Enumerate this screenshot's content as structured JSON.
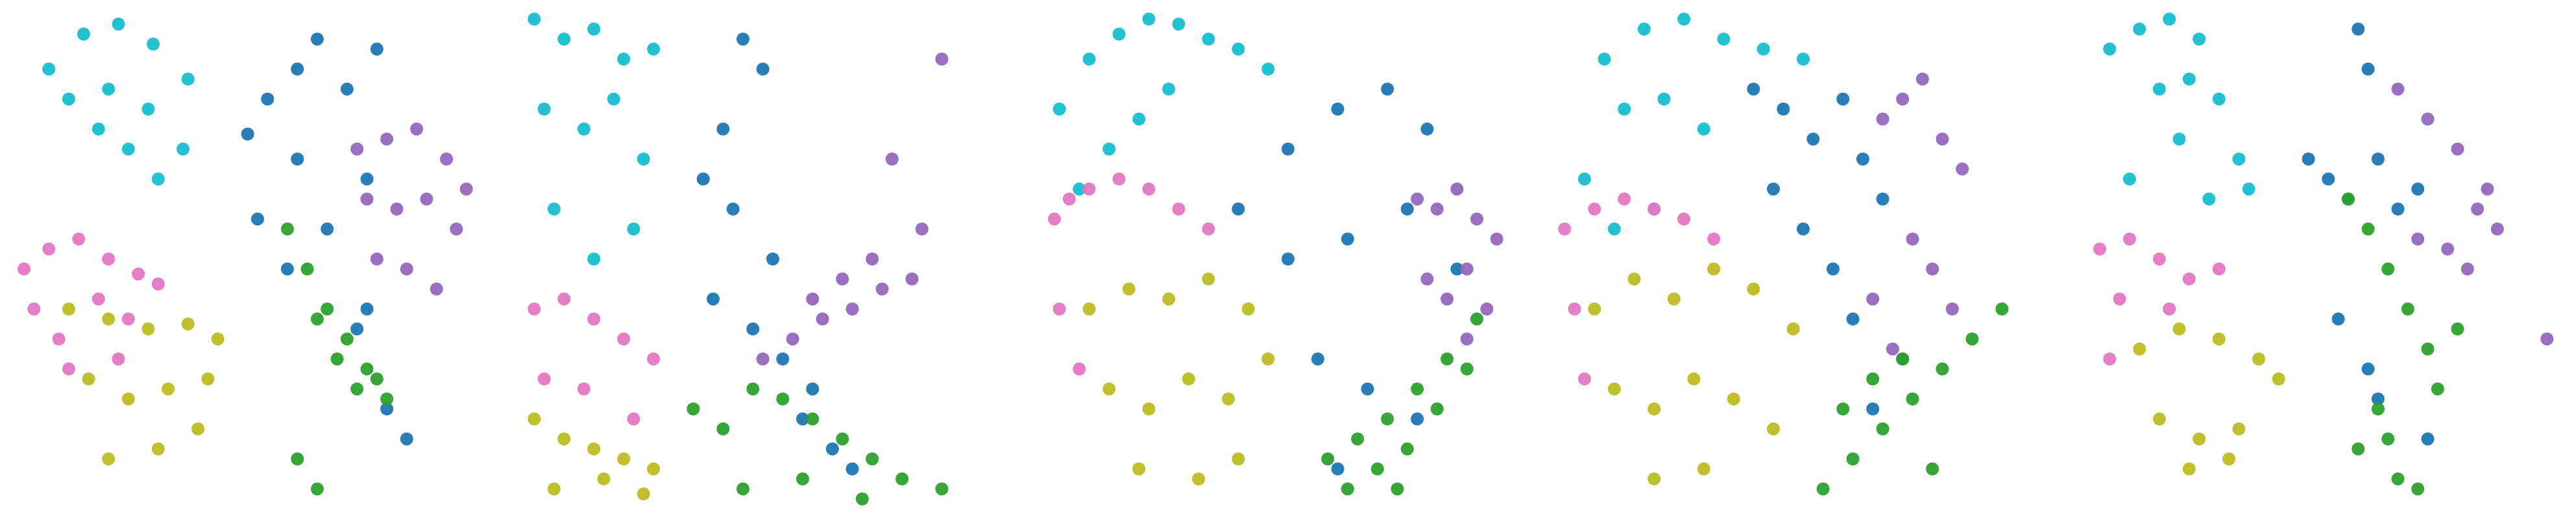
{
  "chart_data": [
    {
      "type": "scatter",
      "xlim": [
        0,
        100
      ],
      "ylim": [
        0,
        100
      ],
      "series": [
        {
          "color": "#17becf",
          "x": [
            8,
            15,
            22,
            29,
            36,
            12,
            20,
            28,
            35,
            24,
            30,
            18
          ],
          "y": [
            88,
            95,
            97,
            93,
            86,
            82,
            84,
            80,
            72,
            72,
            66,
            76
          ]
        },
        {
          "color": "#e377c2",
          "x": [
            3,
            8,
            14,
            20,
            26,
            5,
            10,
            18,
            24,
            30,
            12,
            22
          ],
          "y": [
            48,
            52,
            54,
            50,
            47,
            40,
            34,
            42,
            38,
            45,
            28,
            30
          ]
        },
        {
          "color": "#bcbd22",
          "x": [
            12,
            20,
            28,
            36,
            42,
            16,
            24,
            32,
            40,
            20,
            30,
            38
          ],
          "y": [
            40,
            38,
            36,
            37,
            34,
            26,
            22,
            24,
            26,
            10,
            12,
            16
          ]
        },
        {
          "color": "#1f77b4",
          "x": [
            48,
            52,
            58,
            62,
            68,
            72,
            50,
            56,
            64,
            70,
            76,
            80,
            58,
            74,
            72
          ],
          "y": [
            75,
            82,
            70,
            94,
            84,
            66,
            58,
            48,
            56,
            36,
            20,
            14,
            88,
            92,
            40
          ]
        },
        {
          "color": "#9467bd",
          "x": [
            70,
            76,
            82,
            88,
            92,
            72,
            78,
            84,
            90,
            74,
            80,
            86
          ],
          "y": [
            72,
            74,
            76,
            70,
            64,
            62,
            60,
            62,
            56,
            50,
            48,
            44
          ]
        },
        {
          "color": "#2ca02c",
          "x": [
            56,
            60,
            64,
            68,
            72,
            62,
            66,
            70,
            74,
            58,
            62,
            76
          ],
          "y": [
            56,
            48,
            40,
            34,
            28,
            38,
            30,
            24,
            26,
            10,
            4,
            22
          ]
        }
      ]
    },
    {
      "type": "scatter",
      "xlim": [
        0,
        100
      ],
      "ylim": [
        0,
        100
      ],
      "series": [
        {
          "color": "#17becf",
          "x": [
            2,
            8,
            14,
            20,
            26,
            4,
            12,
            18,
            24,
            6,
            14,
            22
          ],
          "y": [
            98,
            94,
            96,
            90,
            92,
            80,
            76,
            82,
            70,
            60,
            50,
            56
          ]
        },
        {
          "color": "#e377c2",
          "x": [
            2,
            8,
            14,
            20,
            26,
            4,
            12,
            22
          ],
          "y": [
            40,
            42,
            38,
            34,
            30,
            26,
            24,
            18
          ]
        },
        {
          "color": "#bcbd22",
          "x": [
            2,
            8,
            14,
            20,
            26,
            6,
            16,
            24
          ],
          "y": [
            18,
            14,
            12,
            10,
            8,
            4,
            6,
            3
          ]
        },
        {
          "color": "#1f77b4",
          "x": [
            44,
            48,
            40,
            36,
            42,
            50,
            38,
            46,
            52,
            58,
            56,
            62,
            66
          ],
          "y": [
            94,
            88,
            76,
            66,
            60,
            50,
            42,
            36,
            30,
            24,
            18,
            12,
            8
          ]
        },
        {
          "color": "#9467bd",
          "x": [
            48,
            54,
            60,
            66,
            72,
            78,
            58,
            64,
            70,
            80,
            84,
            74
          ],
          "y": [
            30,
            34,
            38,
            40,
            44,
            46,
            42,
            46,
            50,
            56,
            90,
            70
          ]
        },
        {
          "color": "#2ca02c",
          "x": [
            34,
            40,
            46,
            52,
            58,
            64,
            70,
            76,
            44,
            56,
            68,
            84
          ],
          "y": [
            20,
            16,
            24,
            22,
            18,
            14,
            10,
            6,
            4,
            6,
            2,
            4
          ]
        }
      ]
    },
    {
      "type": "scatter",
      "xlim": [
        0,
        100
      ],
      "ylim": [
        0,
        100
      ],
      "series": [
        {
          "color": "#17becf",
          "x": [
            4,
            10,
            16,
            22,
            28,
            34,
            40,
            46,
            8,
            14,
            20,
            26
          ],
          "y": [
            80,
            90,
            95,
            98,
            97,
            94,
            92,
            88,
            64,
            72,
            78,
            84
          ]
        },
        {
          "color": "#e377c2",
          "x": [
            3,
            6,
            10,
            16,
            22,
            28,
            34,
            4,
            8
          ],
          "y": [
            58,
            62,
            64,
            66,
            64,
            60,
            56,
            40,
            28
          ]
        },
        {
          "color": "#bcbd22",
          "x": [
            10,
            18,
            26,
            34,
            42,
            14,
            22,
            30,
            38,
            46,
            20,
            32,
            40
          ],
          "y": [
            40,
            44,
            42,
            46,
            40,
            24,
            20,
            26,
            22,
            30,
            8,
            6,
            10
          ]
        },
        {
          "color": "#1f77b4",
          "x": [
            40,
            50,
            60,
            70,
            78,
            50,
            62,
            74,
            84,
            56,
            66,
            76,
            60
          ],
          "y": [
            60,
            72,
            80,
            84,
            76,
            50,
            54,
            60,
            48,
            30,
            24,
            18,
            8
          ]
        },
        {
          "color": "#9467bd",
          "x": [
            76,
            80,
            84,
            88,
            92,
            78,
            82,
            86,
            90,
            86
          ],
          "y": [
            62,
            60,
            64,
            58,
            54,
            46,
            42,
            48,
            40,
            34
          ]
        },
        {
          "color": "#2ca02c",
          "x": [
            58,
            64,
            70,
            76,
            82,
            88,
            68,
            74,
            80,
            86,
            62,
            72
          ],
          "y": [
            10,
            14,
            18,
            24,
            30,
            38,
            8,
            12,
            20,
            28,
            4,
            4
          ]
        }
      ]
    },
    {
      "type": "scatter",
      "xlim": [
        0,
        100
      ],
      "ylim": [
        0,
        100
      ],
      "series": [
        {
          "color": "#17becf",
          "x": [
            10,
            18,
            26,
            34,
            42,
            50,
            14,
            22,
            30,
            6,
            12,
            20
          ],
          "y": [
            90,
            96,
            98,
            94,
            92,
            90,
            80,
            82,
            76,
            66,
            56,
            60
          ]
        },
        {
          "color": "#e377c2",
          "x": [
            2,
            8,
            14,
            20,
            26,
            32,
            4,
            6
          ],
          "y": [
            56,
            60,
            62,
            60,
            58,
            54,
            40,
            26
          ]
        },
        {
          "color": "#bcbd22",
          "x": [
            8,
            16,
            24,
            32,
            40,
            48,
            12,
            20,
            28,
            36,
            44,
            20,
            30
          ],
          "y": [
            40,
            46,
            42,
            48,
            44,
            36,
            24,
            20,
            26,
            22,
            16,
            6,
            8
          ]
        },
        {
          "color": "#1f77b4",
          "x": [
            40,
            46,
            52,
            58,
            62,
            66,
            44,
            50,
            56,
            60,
            70,
            64
          ],
          "y": [
            84,
            80,
            74,
            82,
            70,
            62,
            64,
            56,
            48,
            38,
            30,
            20
          ]
        },
        {
          "color": "#9467bd",
          "x": [
            66,
            70,
            74,
            78,
            82,
            72,
            76,
            80,
            64,
            68
          ],
          "y": [
            78,
            82,
            86,
            74,
            68,
            54,
            48,
            40,
            42,
            32
          ]
        },
        {
          "color": "#2ca02c",
          "x": [
            54,
            60,
            66,
            72,
            78,
            84,
            58,
            64,
            70,
            76,
            90
          ],
          "y": [
            4,
            10,
            16,
            22,
            28,
            34,
            20,
            26,
            30,
            8,
            40
          ]
        }
      ]
    },
    {
      "type": "scatter",
      "xlim": [
        0,
        100
      ],
      "ylim": [
        0,
        100
      ],
      "series": [
        {
          "color": "#17becf",
          "x": [
            8,
            14,
            20,
            26,
            18,
            24,
            30,
            22,
            34,
            12,
            28,
            36
          ],
          "y": [
            92,
            96,
            98,
            94,
            84,
            86,
            82,
            74,
            70,
            66,
            62,
            64
          ]
        },
        {
          "color": "#e377c2",
          "x": [
            6,
            12,
            18,
            24,
            30,
            10,
            20,
            8
          ],
          "y": [
            52,
            54,
            50,
            46,
            48,
            42,
            40,
            30
          ]
        },
        {
          "color": "#bcbd22",
          "x": [
            14,
            22,
            30,
            38,
            42,
            18,
            26,
            34,
            24,
            32
          ],
          "y": [
            32,
            36,
            34,
            30,
            26,
            18,
            14,
            16,
            8,
            10
          ]
        },
        {
          "color": "#1f77b4",
          "x": [
            58,
            60,
            48,
            52,
            56,
            62,
            66,
            70,
            54,
            60,
            72,
            62
          ],
          "y": [
            96,
            88,
            70,
            66,
            62,
            70,
            60,
            64,
            38,
            28,
            14,
            22
          ]
        },
        {
          "color": "#9467bd",
          "x": [
            66,
            72,
            78,
            82,
            86,
            70,
            76,
            80,
            96,
            84
          ],
          "y": [
            84,
            78,
            72,
            60,
            56,
            54,
            52,
            48,
            34,
            64
          ]
        },
        {
          "color": "#2ca02c",
          "x": [
            56,
            60,
            64,
            68,
            72,
            74,
            62,
            58,
            66,
            70,
            64,
            78
          ],
          "y": [
            62,
            56,
            48,
            40,
            32,
            24,
            20,
            12,
            6,
            4,
            14,
            36
          ]
        }
      ]
    }
  ]
}
